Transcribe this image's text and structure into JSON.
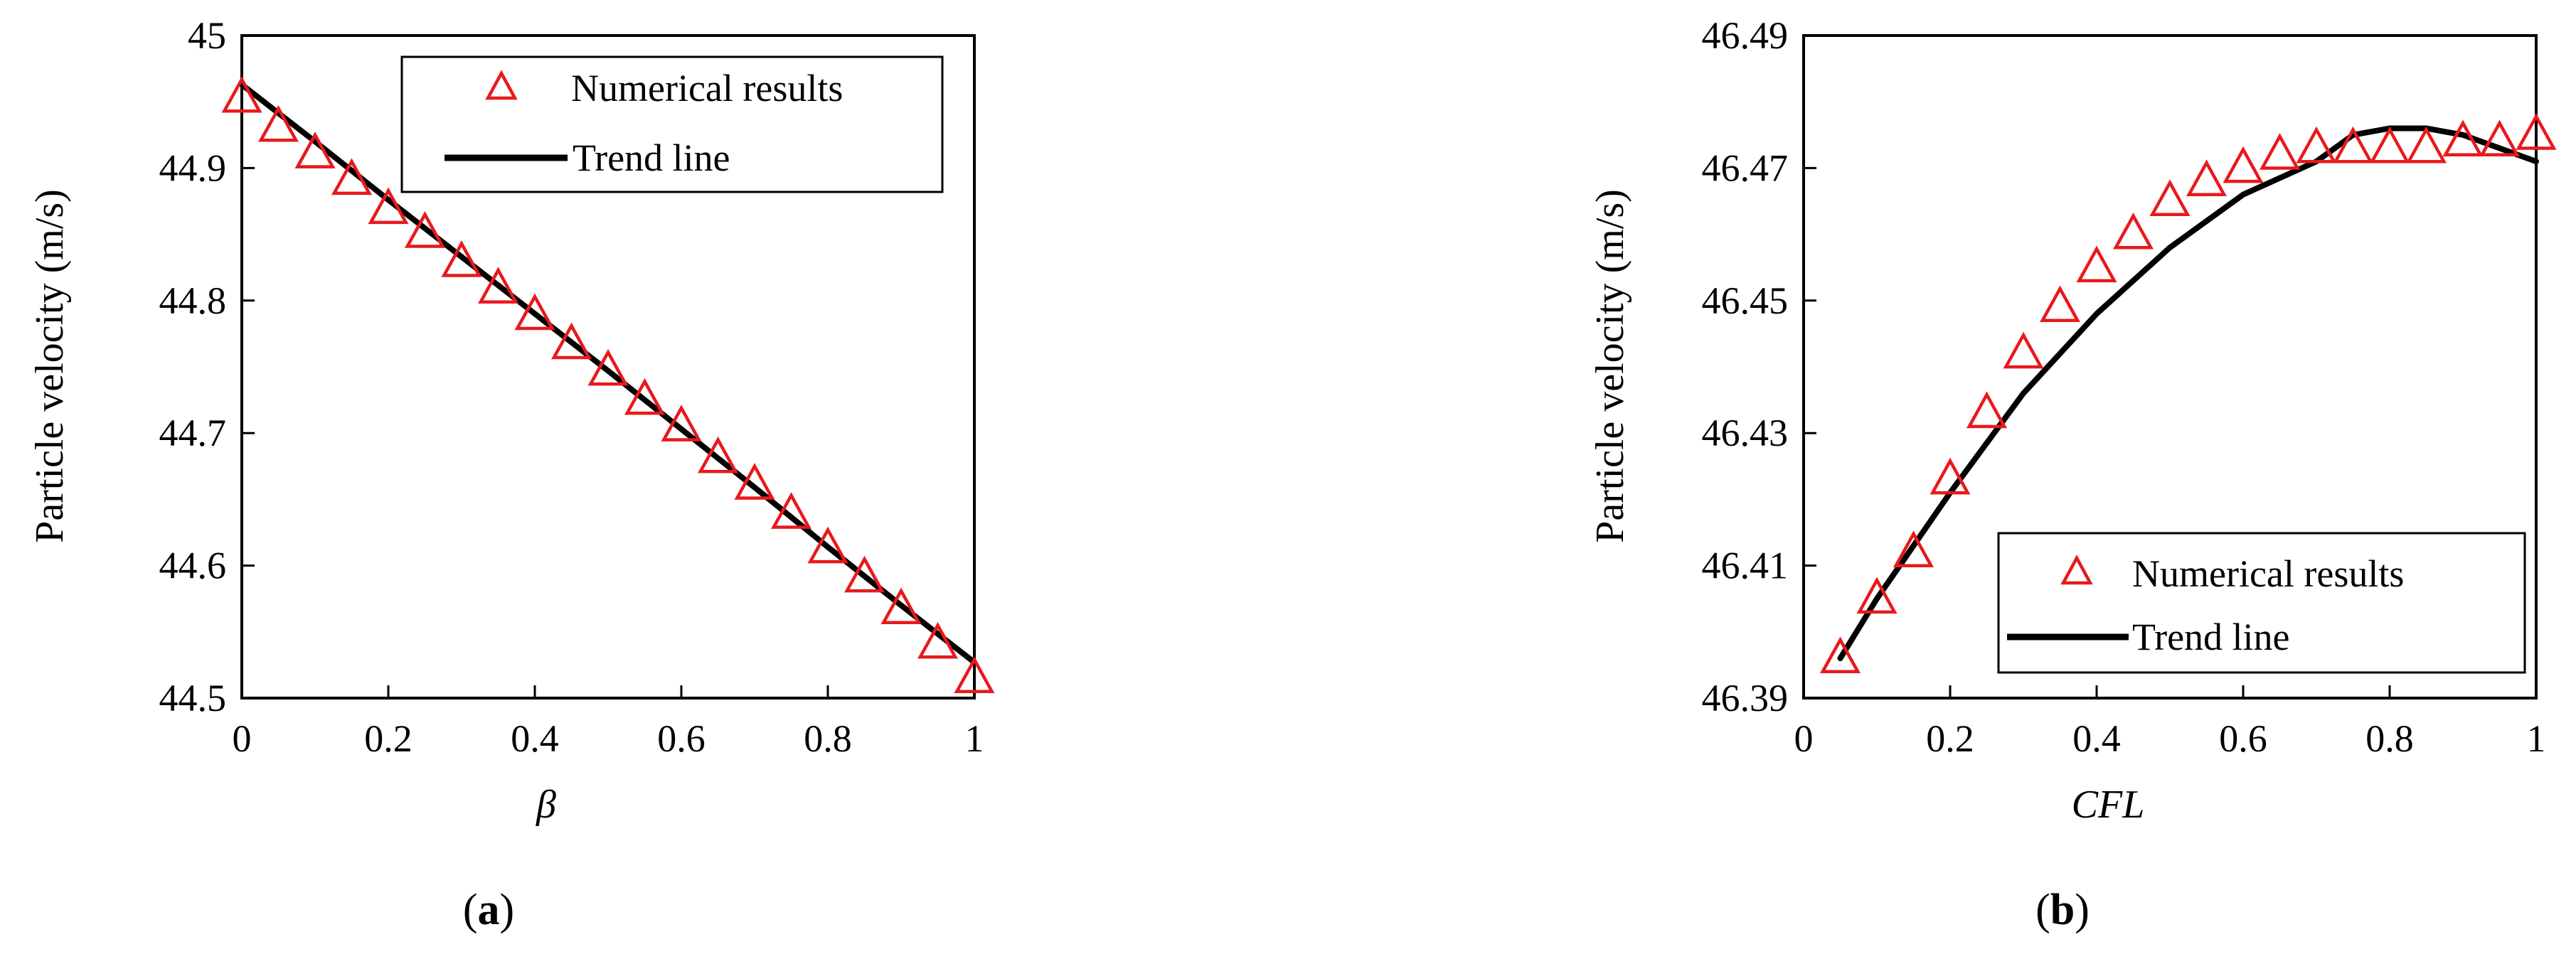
{
  "figure": {
    "panels": [
      {
        "panel_label_open": "(",
        "panel_label_letter": "a",
        "panel_label_close": ")"
      },
      {
        "panel_label_open": "(",
        "panel_label_letter": "b",
        "panel_label_close": ")"
      }
    ]
  },
  "colors": {
    "marker": "#e8191c",
    "trend": "#000000",
    "axis": "#000000"
  },
  "chart_data": [
    {
      "type": "scatter",
      "xlabel": "β",
      "xlabel_italic": true,
      "ylabel": "Particle velocity (m/s)",
      "xlim": [
        0,
        1
      ],
      "ylim": [
        44.5,
        45
      ],
      "xticks": [
        0,
        0.2,
        0.4,
        0.6,
        0.8,
        1
      ],
      "xtick_labels": [
        "0",
        "0.2",
        "0.4",
        "0.6",
        "0.8",
        "1"
      ],
      "yticks": [
        44.5,
        44.6,
        44.7,
        44.8,
        44.9,
        45
      ],
      "ytick_labels": [
        "44.5",
        "44.6",
        "44.7",
        "44.8",
        "44.9",
        "45"
      ],
      "legend_placement": "top-right",
      "grid": false,
      "series": [
        {
          "name": "Numerical results",
          "marker": "open-triangle",
          "x": [
            0,
            0.05,
            0.1,
            0.15,
            0.2,
            0.25,
            0.3,
            0.35,
            0.4,
            0.45,
            0.5,
            0.55,
            0.6,
            0.65,
            0.7,
            0.75,
            0.8,
            0.85,
            0.9,
            0.95,
            1
          ],
          "y": [
            44.953,
            44.931,
            44.911,
            44.891,
            44.869,
            44.851,
            44.829,
            44.809,
            44.789,
            44.767,
            44.747,
            44.725,
            44.705,
            44.681,
            44.661,
            44.639,
            44.613,
            44.591,
            44.567,
            44.541,
            44.515
          ]
        },
        {
          "name": "Trend line",
          "style": "solid-line",
          "x": [
            0,
            0.1,
            0.2,
            0.3,
            0.4,
            0.5,
            0.6,
            0.7,
            0.8,
            0.9,
            1
          ],
          "y": [
            44.963,
            44.92,
            44.876,
            44.833,
            44.79,
            44.747,
            44.703,
            44.659,
            44.614,
            44.57,
            44.527
          ]
        }
      ]
    },
    {
      "type": "scatter",
      "xlabel": "CFL",
      "xlabel_italic": true,
      "ylabel": "Particle velocity (m/s)",
      "xlim": [
        0,
        1
      ],
      "ylim": [
        46.39,
        46.49
      ],
      "xticks": [
        0,
        0.2,
        0.4,
        0.6,
        0.8,
        1
      ],
      "xtick_labels": [
        "0",
        "0.2",
        "0.4",
        "0.6",
        "0.8",
        "1"
      ],
      "yticks": [
        46.39,
        46.41,
        46.43,
        46.45,
        46.47,
        46.49
      ],
      "ytick_labels": [
        "46.39",
        "46.41",
        "46.43",
        "46.45",
        "46.47",
        "46.49"
      ],
      "legend_placement": "bottom-right",
      "grid": false,
      "series": [
        {
          "name": "Numerical results",
          "marker": "open-triangle",
          "x": [
            0.05,
            0.1,
            0.15,
            0.2,
            0.25,
            0.3,
            0.35,
            0.4,
            0.45,
            0.5,
            0.55,
            0.6,
            0.65,
            0.7,
            0.75,
            0.8,
            0.85,
            0.9,
            0.95,
            1
          ],
          "y": [
            46.396,
            46.405,
            46.412,
            46.423,
            46.433,
            46.442,
            46.449,
            46.455,
            46.46,
            46.465,
            46.468,
            46.47,
            46.472,
            46.473,
            46.473,
            46.473,
            46.473,
            46.474,
            46.474,
            46.475
          ]
        },
        {
          "name": "Trend line",
          "style": "solid-line",
          "x": [
            0.05,
            0.1,
            0.2,
            0.3,
            0.4,
            0.5,
            0.6,
            0.7,
            0.75,
            0.8,
            0.85,
            0.9,
            1
          ],
          "y": [
            46.396,
            46.405,
            46.421,
            46.436,
            46.448,
            46.458,
            46.466,
            46.471,
            46.475,
            46.476,
            46.476,
            46.475,
            46.471
          ]
        }
      ]
    }
  ]
}
